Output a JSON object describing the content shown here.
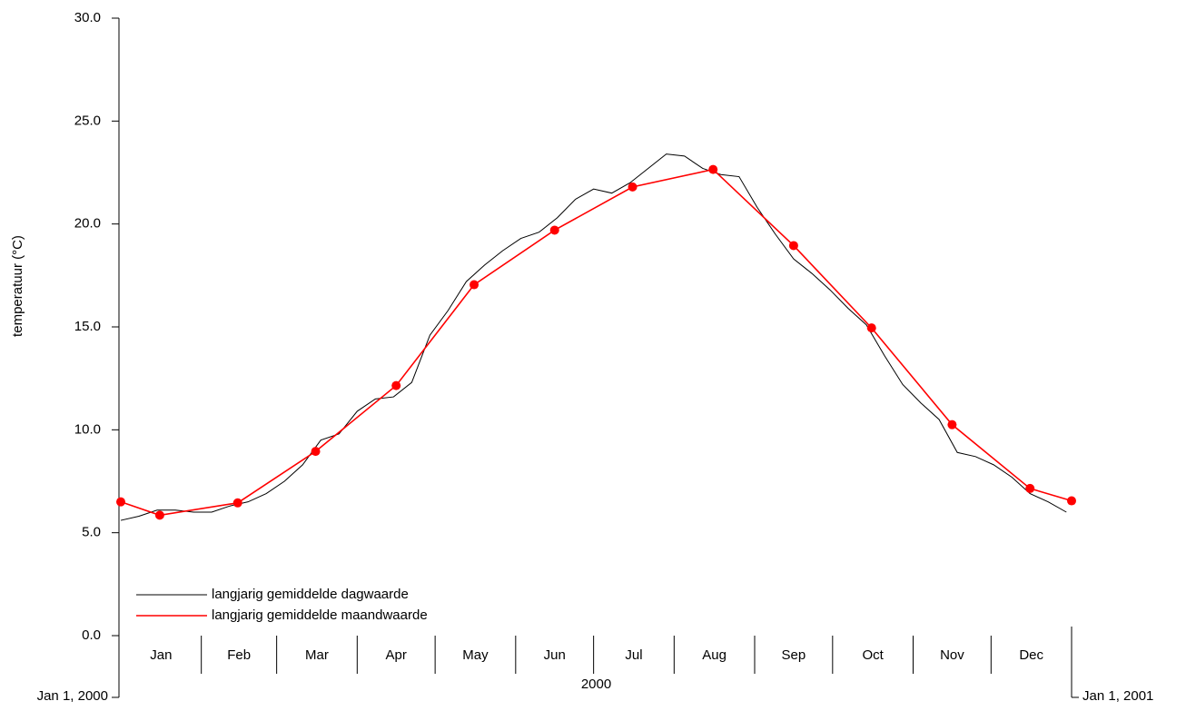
{
  "chart_data": {
    "type": "line",
    "y_label": "temperatuur (°C)",
    "ylim": [
      0,
      30
    ],
    "yticks": [
      {
        "value": 0,
        "label": "0.0"
      },
      {
        "value": 5,
        "label": "5.0"
      },
      {
        "value": 10,
        "label": "10.0"
      },
      {
        "value": 15,
        "label": "15.0"
      },
      {
        "value": 20,
        "label": "20.0"
      },
      {
        "value": 25,
        "label": "25.0"
      },
      {
        "value": 30,
        "label": "30.0"
      }
    ],
    "xlim": [
      "2000-01-01",
      "2001-01-01"
    ],
    "xticks": [
      {
        "value": "2000-01-01",
        "label": "Jan 1, 2000"
      },
      {
        "value": "2001-01-01",
        "label": "Jan 1, 2001"
      }
    ],
    "month_labels": [
      "Jan",
      "Feb",
      "Mar",
      "Apr",
      "May",
      "Jun",
      "Jul",
      "Aug",
      "Sep",
      "Oct",
      "Nov",
      "Dec"
    ],
    "year_label": "2000",
    "legend": "lower left",
    "series": [
      {
        "name": "langjarig gemiddelde dagwaarde",
        "color": "#000000",
        "markers": false,
        "x": [
          "2000-01-01",
          "2000-01-08",
          "2000-01-15",
          "2000-01-22",
          "2000-01-29",
          "2000-02-05",
          "2000-02-12",
          "2000-02-19",
          "2000-02-26",
          "2000-03-04",
          "2000-03-11",
          "2000-03-18",
          "2000-03-25",
          "2000-04-01",
          "2000-04-08",
          "2000-04-15",
          "2000-04-22",
          "2000-04-29",
          "2000-05-06",
          "2000-05-13",
          "2000-05-20",
          "2000-05-27",
          "2000-06-03",
          "2000-06-10",
          "2000-06-17",
          "2000-06-24",
          "2000-07-01",
          "2000-07-08",
          "2000-07-15",
          "2000-07-22",
          "2000-07-29",
          "2000-08-05",
          "2000-08-12",
          "2000-08-19",
          "2000-08-26",
          "2000-09-02",
          "2000-09-09",
          "2000-09-16",
          "2000-09-23",
          "2000-09-30",
          "2000-10-07",
          "2000-10-14",
          "2000-10-21",
          "2000-10-28",
          "2000-11-04",
          "2000-11-11",
          "2000-11-18",
          "2000-11-25",
          "2000-12-02",
          "2000-12-09",
          "2000-12-16",
          "2000-12-23",
          "2000-12-30"
        ],
        "values": [
          5.6,
          5.8,
          6.1,
          6.1,
          6.0,
          6.0,
          6.3,
          6.5,
          6.9,
          7.5,
          8.3,
          9.5,
          9.8,
          10.9,
          11.5,
          11.6,
          12.3,
          14.6,
          15.8,
          17.2,
          18.0,
          18.7,
          19.3,
          19.6,
          20.3,
          21.2,
          21.7,
          21.5,
          22.0,
          22.7,
          23.4,
          23.3,
          22.7,
          22.4,
          22.3,
          20.8,
          19.5,
          18.3,
          17.6,
          16.8,
          15.9,
          15.1,
          13.6,
          12.2,
          11.3,
          10.5,
          8.9,
          8.7,
          8.3,
          7.7,
          6.9,
          6.5,
          6.0
        ]
      },
      {
        "name": "langjarig gemiddelde maandwaarde",
        "color": "#ff0000",
        "markers": true,
        "x": [
          "2000-01-01",
          "2000-01-16",
          "2000-02-15",
          "2000-03-16",
          "2000-04-16",
          "2000-05-16",
          "2000-06-16",
          "2000-07-16",
          "2000-08-16",
          "2000-09-16",
          "2000-10-16",
          "2000-11-16",
          "2000-12-16",
          "2001-01-01"
        ],
        "values": [
          6.5,
          5.85,
          6.45,
          8.95,
          12.15,
          17.05,
          19.7,
          21.8,
          22.65,
          18.95,
          14.95,
          10.25,
          7.15,
          6.55
        ]
      }
    ]
  }
}
